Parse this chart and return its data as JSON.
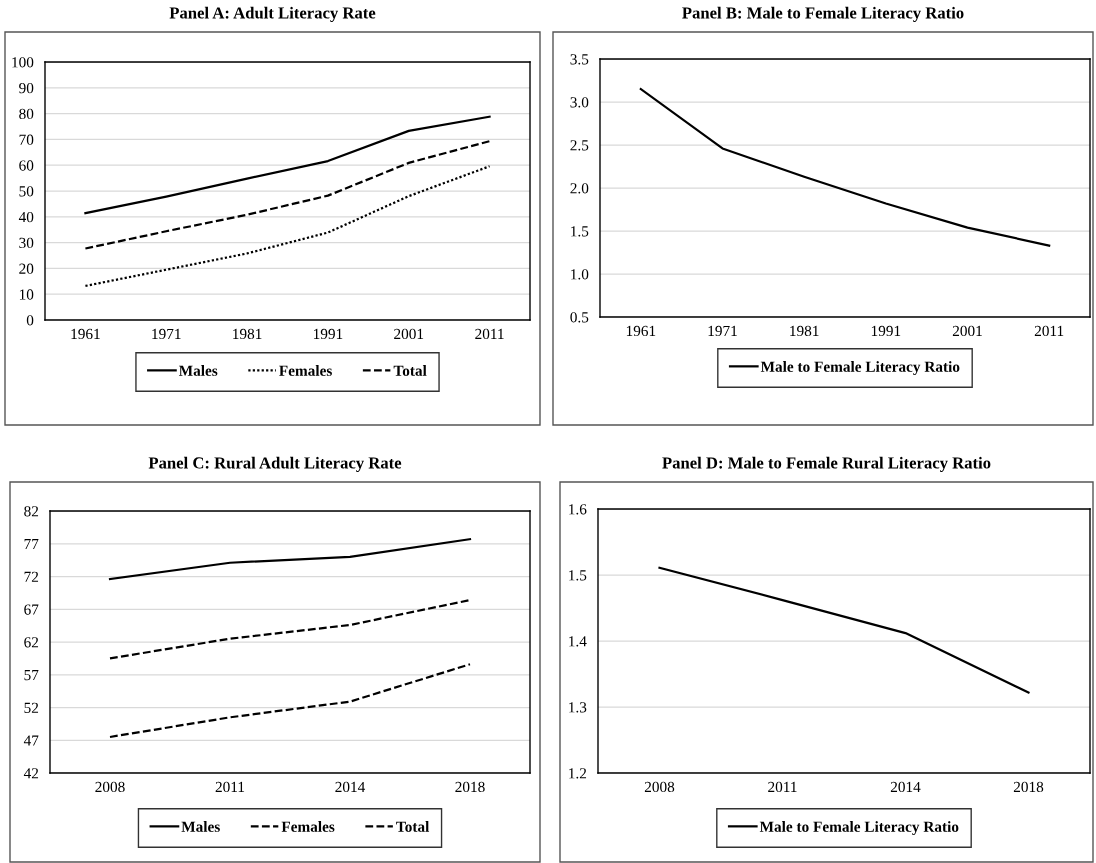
{
  "chart_data": [
    {
      "type": "line",
      "title": "Panel A: Adult Literacy Rate",
      "categories": [
        "1961",
        "1971",
        "1981",
        "1991",
        "2001",
        "2011"
      ],
      "ylim": [
        0,
        100
      ],
      "yticks": [
        0,
        10,
        20,
        30,
        40,
        50,
        60,
        70,
        80,
        90,
        100
      ],
      "grid": "y",
      "legend": "bottom",
      "series": [
        {
          "name": "Males",
          "color": "#000000",
          "line_style": "solid",
          "values": [
            41.4,
            47.8,
            54.8,
            61.6,
            73.3,
            78.8
          ]
        },
        {
          "name": "Females",
          "color": "#000000",
          "line_style": "dotted",
          "values": [
            13.2,
            19.5,
            25.8,
            33.9,
            48.0,
            59.6
          ]
        },
        {
          "name": "Total",
          "color": "#000000",
          "line_style": "dashed",
          "values": [
            27.7,
            34.4,
            40.8,
            48.2,
            60.9,
            69.3
          ]
        }
      ]
    },
    {
      "type": "line",
      "title": "Panel B: Male to Female Literacy Ratio",
      "categories": [
        "1961",
        "1971",
        "1981",
        "1991",
        "2001",
        "2011"
      ],
      "ylim": [
        0.5,
        3.5
      ],
      "yticks": [
        {
          "value": 0.5,
          "label": "0.5"
        },
        {
          "value": 1.0,
          "label": "1.0"
        },
        {
          "value": 1.5,
          "label": "1.5"
        },
        {
          "value": 2.0,
          "label": "2.0"
        },
        {
          "value": 2.5,
          "label": "2.5"
        },
        {
          "value": 3.0,
          "label": "3.0"
        },
        {
          "value": 3.5,
          "label": "3.5"
        }
      ],
      "grid": "y",
      "legend": "bottom",
      "series": [
        {
          "name": "Male to Female Literacy Ratio",
          "color": "#000000",
          "line_style": "solid",
          "values": [
            3.15,
            2.46,
            2.13,
            1.82,
            1.54,
            1.33
          ]
        }
      ]
    },
    {
      "type": "line",
      "title": "Panel C: Rural Adult Literacy Rate",
      "categories": [
        "2008",
        "2011",
        "2014",
        "2018"
      ],
      "ylim": [
        42,
        82
      ],
      "yticks": [
        42,
        47,
        52,
        57,
        62,
        67,
        72,
        77,
        82
      ],
      "grid": "y",
      "legend": "bottom",
      "series": [
        {
          "name": "Males",
          "color": "#000000",
          "line_style": "solid",
          "values": [
            71.6,
            74.1,
            75.0,
            77.7
          ]
        },
        {
          "name": "Females",
          "color": "#000000",
          "line_style": "dashed",
          "values": [
            47.5,
            50.5,
            52.9,
            58.6
          ]
        },
        {
          "name": "Total",
          "color": "#000000",
          "line_style": "dashed",
          "values": [
            59.5,
            62.5,
            64.6,
            68.4
          ]
        }
      ]
    },
    {
      "type": "line",
      "title": "Panel D: Male to Female Rural Literacy Ratio",
      "categories": [
        "2008",
        "2011",
        "2014",
        "2018"
      ],
      "ylim": [
        1.2,
        1.6
      ],
      "yticks": [
        1.2,
        1.3,
        1.4,
        1.5,
        1.6
      ],
      "grid": "y",
      "legend": "bottom",
      "series": [
        {
          "name": "Male to Female Literacy Ratio",
          "color": "#000000",
          "line_style": "solid",
          "values": [
            1.511,
            1.462,
            1.412,
            1.322
          ]
        }
      ]
    }
  ]
}
